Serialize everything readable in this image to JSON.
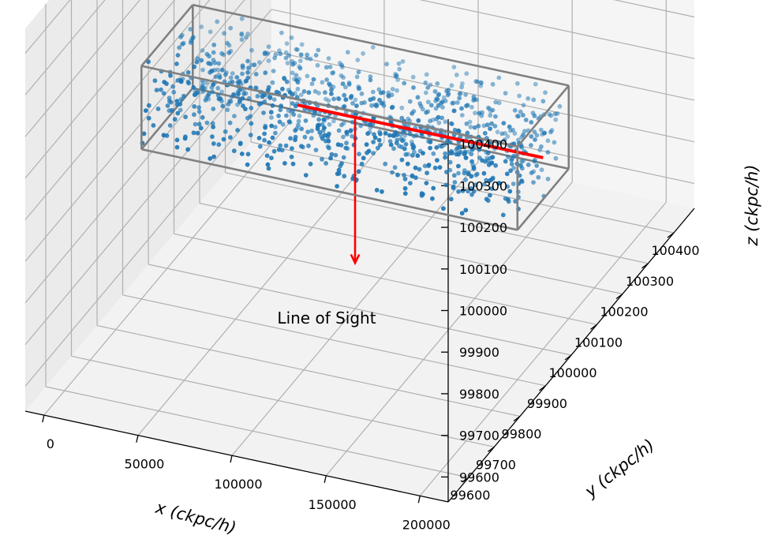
{
  "chart_data": {
    "type": "scatter",
    "projection": "3d",
    "title": "",
    "xlabel": "x  (ckpc/h)",
    "ylabel": "y  (ckpc/h)",
    "zlabel": "z  (ckpc/h)",
    "x_ticks": [
      "0",
      "50000",
      "100000",
      "150000",
      "200000"
    ],
    "y_ticks": [
      "99600",
      "99700",
      "99800",
      "99900",
      "100000",
      "100100",
      "100200",
      "100300",
      "100400"
    ],
    "z_ticks": [
      "99600",
      "99700",
      "99800",
      "99900",
      "100000",
      "100100",
      "100200",
      "100300",
      "100400"
    ],
    "xlim": [
      -10000,
      215000
    ],
    "ylim": [
      99520,
      100480
    ],
    "zlim": [
      99540,
      100460
    ],
    "grid": true,
    "annotation": "Line of Sight",
    "box": {
      "x": [
        0,
        200000
      ],
      "y": [
        99900,
        100100
      ],
      "z": [
        99900,
        100100
      ]
    },
    "line_of_sight": {
      "x": [
        0,
        200000
      ],
      "y": [
        100000,
        100000
      ],
      "z": [
        100000,
        100000
      ]
    },
    "arrow_target": {
      "x": 100000,
      "y": 100000,
      "z": 99650
    },
    "series": [
      {
        "type": "scatter",
        "n_points": 1000,
        "distribution": "uniform within box",
        "color": "#1f77b4"
      },
      {
        "type": "line",
        "color": "#ff0000"
      },
      {
        "type": "box-outline",
        "color": "#808080"
      }
    ]
  }
}
